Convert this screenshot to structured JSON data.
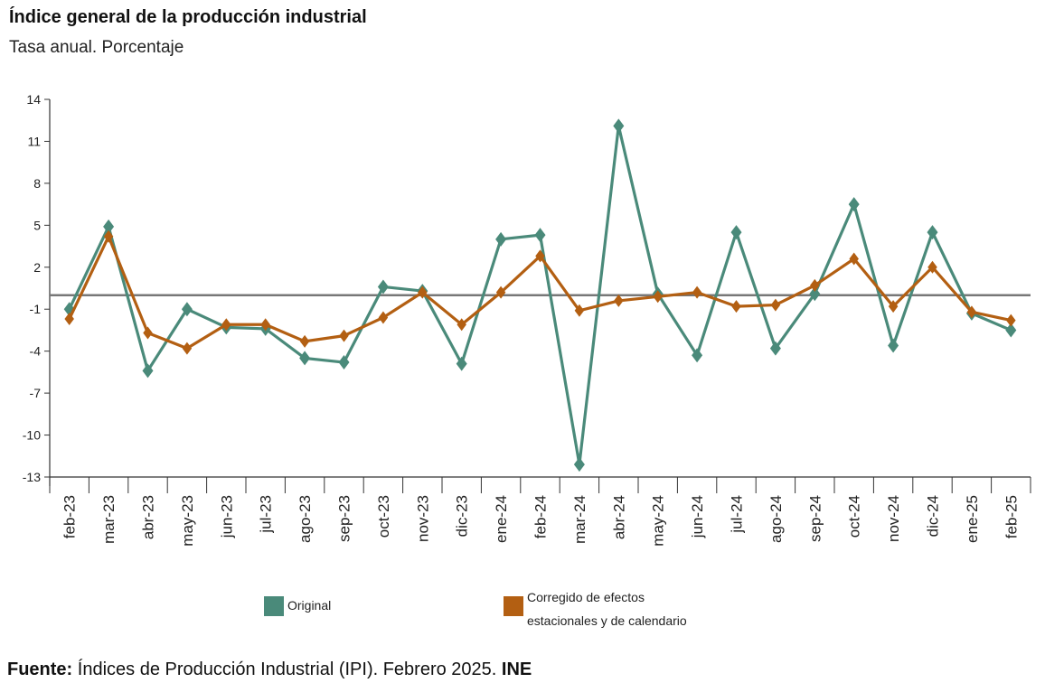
{
  "header": {
    "title": "Índice general de la producción industrial",
    "subtitle": "Tasa anual. Porcentaje"
  },
  "chart_data": {
    "type": "line",
    "title": "Índice general de la producción industrial",
    "subtitle": "Tasa anual. Porcentaje",
    "xlabel": "",
    "ylabel": "",
    "ylim": [
      -13,
      14
    ],
    "yticks": [
      14,
      11,
      8,
      5,
      2,
      -1,
      -4,
      -7,
      -10,
      -13
    ],
    "reference_line": 0,
    "categories": [
      "feb-23",
      "mar-23",
      "abr-23",
      "may-23",
      "jun-23",
      "jul-23",
      "ago-23",
      "sep-23",
      "oct-23",
      "nov-23",
      "dic-23",
      "ene-24",
      "feb-24",
      "mar-24",
      "abr-24",
      "may-24",
      "jun-24",
      "jul-24",
      "ago-24",
      "sep-24",
      "oct-24",
      "nov-24",
      "dic-24",
      "ene-25",
      "feb-25"
    ],
    "series": [
      {
        "name": "Original",
        "color": "#4a8a7a",
        "values": [
          -1.0,
          4.9,
          -5.4,
          -1.0,
          -2.3,
          -2.4,
          -4.5,
          -4.8,
          0.6,
          0.3,
          -4.9,
          4.0,
          4.3,
          -12.1,
          12.1,
          0.1,
          -4.3,
          4.5,
          -3.8,
          0.1,
          6.5,
          -3.6,
          4.5,
          -1.3,
          -2.5
        ]
      },
      {
        "name": "Corregido de efectos estacionales y de calendario",
        "color": "#b35f12",
        "values": [
          -1.7,
          4.2,
          -2.7,
          -3.8,
          -2.1,
          -2.1,
          -3.3,
          -2.9,
          -1.6,
          0.2,
          -2.1,
          0.2,
          2.8,
          -1.1,
          -0.4,
          -0.1,
          0.2,
          -0.8,
          -0.7,
          0.7,
          2.6,
          -0.8,
          2.0,
          -1.2,
          -1.8
        ]
      }
    ],
    "legend": [
      "Original",
      "Corregido de efectos estacionales y de calendario"
    ]
  },
  "legend": {
    "original": "Original",
    "corrected_line1": "Corregido de efectos",
    "corrected_line2": "estacionales y de calendario"
  },
  "source": {
    "label": "Fuente:",
    "text": " Índices de Producción Industrial (IPI).  Febrero 2025. ",
    "org": "INE"
  }
}
